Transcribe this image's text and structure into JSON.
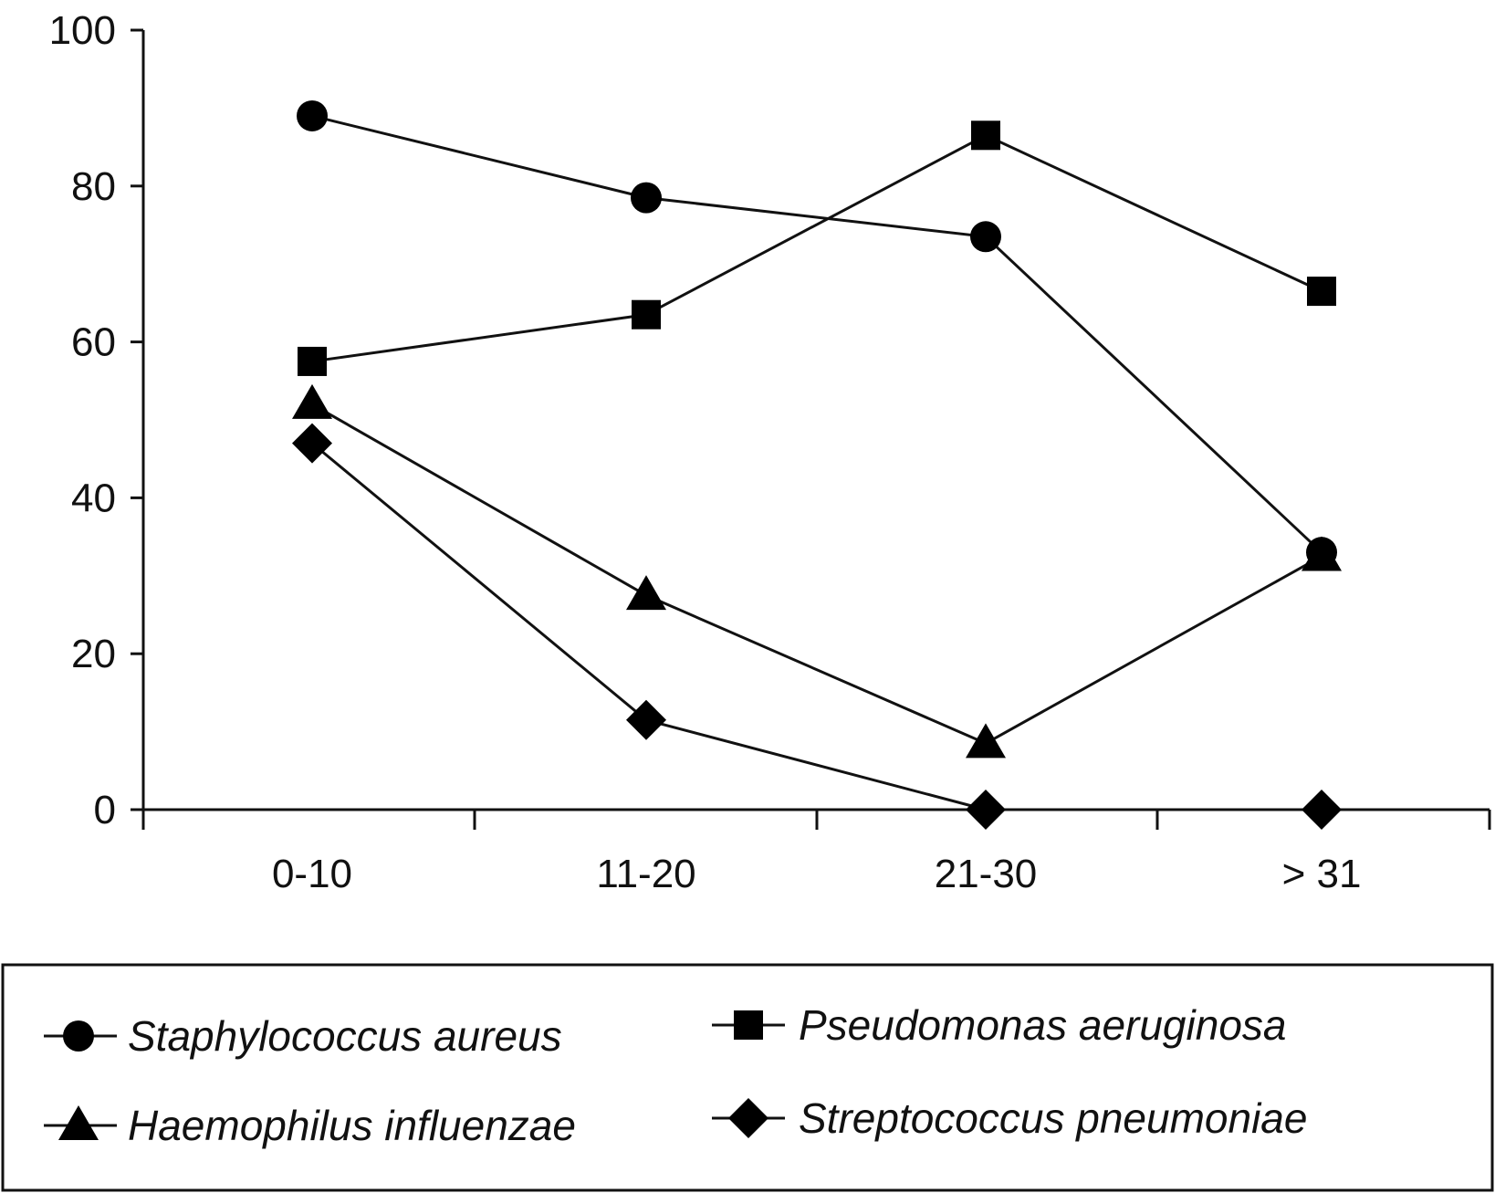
{
  "chart_data": {
    "type": "line",
    "title": "",
    "xlabel": "",
    "ylabel": "",
    "categories": [
      "0-10",
      "11-20",
      "21-30",
      "> 31"
    ],
    "ylim": [
      0,
      100
    ],
    "yticks": [
      0,
      20,
      40,
      60,
      80,
      100
    ],
    "grid": false,
    "legend_position": "bottom",
    "series": [
      {
        "name": "Staphylococcus aureus",
        "marker": "circle",
        "values": [
          89,
          78.5,
          73.5,
          33
        ]
      },
      {
        "name": "Pseudomonas aeruginosa",
        "marker": "square",
        "values": [
          57.5,
          63.5,
          86.5,
          66.5
        ]
      },
      {
        "name": "Haemophilus influenzae",
        "marker": "triangle",
        "values": [
          52,
          27.5,
          8.5,
          32.5
        ]
      },
      {
        "name": "Streptococcus pneumoniae",
        "marker": "diamond",
        "values": [
          47,
          11.5,
          0,
          0
        ],
        "connected": [
          true,
          true,
          true,
          false
        ]
      }
    ],
    "colors": {
      "line": "#111111",
      "marker": "#000000"
    }
  }
}
